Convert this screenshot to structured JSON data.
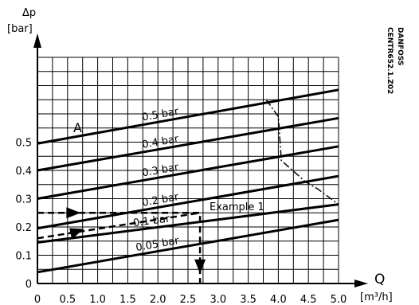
{
  "chart_data": {
    "type": "line",
    "ylabel": "Δp",
    "ylabel_unit": "[bar]",
    "xlabel": "Q",
    "xlabel_unit": "[m³/h]",
    "xlim": [
      0,
      5
    ],
    "ylim": [
      0,
      0.8
    ],
    "x_ticks": [
      "0",
      "0.5",
      "1.0",
      "1.5",
      "2.0",
      "2.5",
      "3.0",
      "3.5",
      "4.0",
      "4.5",
      "5.0"
    ],
    "y_ticks": [
      "0",
      "0.1",
      "0.2",
      "0.3",
      "0.4",
      "0.5"
    ],
    "grid": true,
    "series": [
      {
        "name": "0.5 bar",
        "x": [
          0,
          5
        ],
        "y": [
          0.495,
          0.685
        ]
      },
      {
        "name": "0.4 bar",
        "x": [
          0,
          5
        ],
        "y": [
          0.4,
          0.585
        ]
      },
      {
        "name": "0.3 bar",
        "x": [
          0,
          5
        ],
        "y": [
          0.3,
          0.485
        ]
      },
      {
        "name": "0.2 bar",
        "x": [
          0,
          5
        ],
        "y": [
          0.195,
          0.38
        ]
      },
      {
        "name": "0.1 bar",
        "x": [
          0,
          5
        ],
        "y": [
          0.145,
          0.28
        ]
      },
      {
        "name": "0.05 bar",
        "x": [
          0,
          5
        ],
        "y": [
          0.04,
          0.225
        ]
      }
    ],
    "limit_curve": {
      "x": [
        3.8,
        4.0,
        4.05,
        4.45,
        4.65,
        5.0
      ],
      "y": [
        0.65,
        0.59,
        0.435,
        0.36,
        0.335,
        0.28
      ]
    },
    "example": {
      "label": "Example 1",
      "path_high": {
        "x": [
          0,
          2.7,
          2.7
        ],
        "y": [
          0.25,
          0.25,
          0
        ]
      },
      "path_low": {
        "x": [
          0,
          2.7
        ],
        "y": [
          0.16,
          0.25
        ]
      }
    },
    "curve_label": "A",
    "side_text": [
      "CENTR652.1.Z02",
      "DANFOSS"
    ]
  }
}
